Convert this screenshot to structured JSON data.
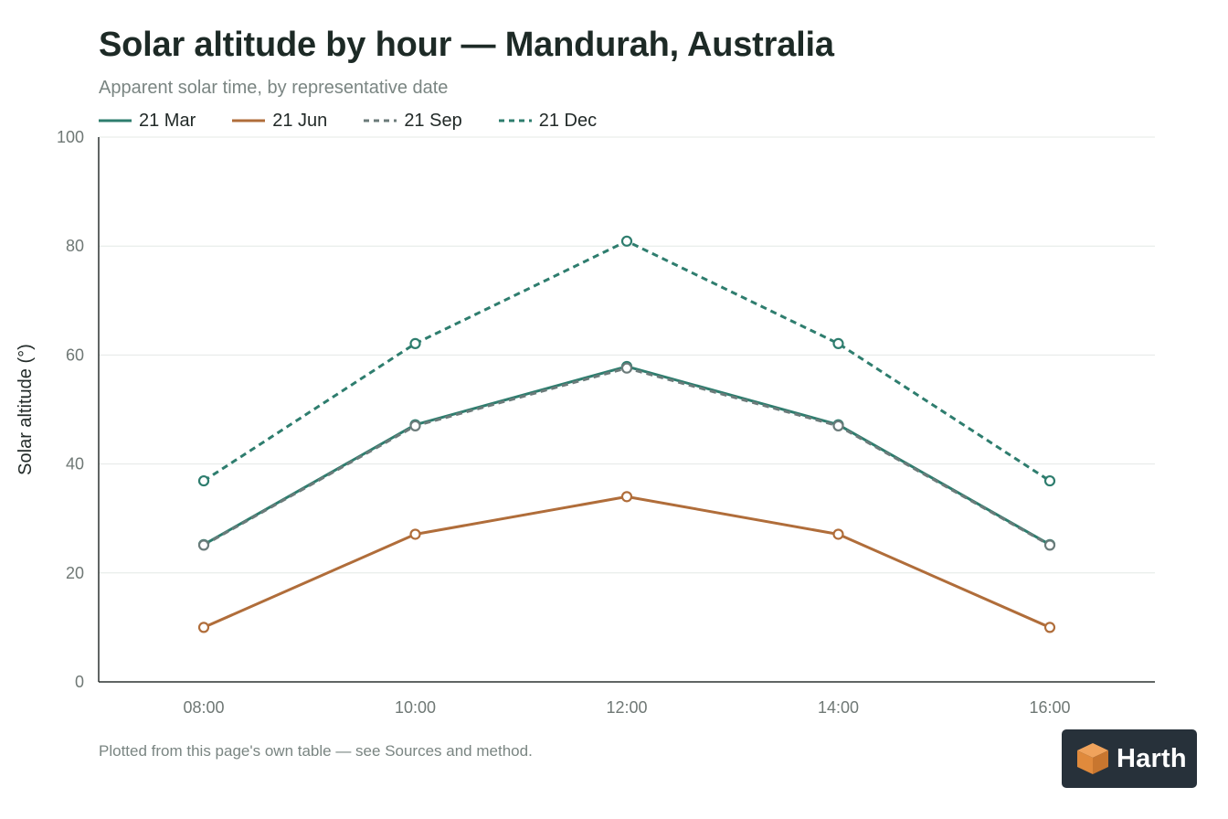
{
  "chart_data": {
    "type": "line",
    "title": "Solar altitude by hour — Mandurah, Australia",
    "subtitle": "Apparent solar time, by representative date",
    "xlabel": "",
    "ylabel": "Solar altitude (°)",
    "categories": [
      "08:00",
      "10:00",
      "12:00",
      "14:00",
      "16:00"
    ],
    "yticks": [
      0,
      20,
      40,
      60,
      80,
      100
    ],
    "ylim": [
      0,
      100
    ],
    "grid": true,
    "legend_position": "top-left",
    "series": [
      {
        "name": "21 Mar",
        "values": [
          25.2,
          47.2,
          57.9,
          47.2,
          25.2
        ],
        "color": "#2e7d6e",
        "dash": false
      },
      {
        "name": "21 Jun",
        "values": [
          10.0,
          27.1,
          34.0,
          27.1,
          10.0
        ],
        "color": "#b06d3a",
        "dash": false
      },
      {
        "name": "21 Sep",
        "values": [
          25.1,
          47.0,
          57.6,
          47.0,
          25.1
        ],
        "color": "#6b7b7a",
        "dash": true
      },
      {
        "name": "21 Dec",
        "values": [
          36.9,
          62.1,
          80.9,
          62.1,
          36.9
        ],
        "color": "#2e7d6e",
        "dash": true
      }
    ],
    "footnote": "Plotted from this page's own table — see Sources and method."
  },
  "logo": {
    "text": "Harth",
    "mark_color": "#f0a35c"
  }
}
